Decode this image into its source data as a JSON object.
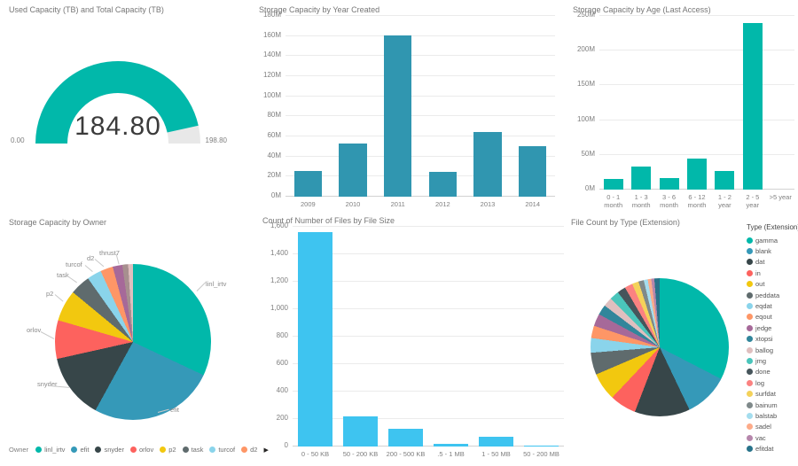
{
  "icons": {
    "legend_scroll_right": "▶"
  },
  "chart_data": [
    {
      "type": "gauge",
      "title": "Used Capacity (TB) and Total Capacity (TB)",
      "value": 184.8,
      "min": 0,
      "max": 198.8,
      "value_label": "184.80",
      "min_label": "0.00",
      "max_label": "198.80",
      "color": "#01B8AA",
      "track_color": "#E8E8E8"
    },
    {
      "type": "bar",
      "title": "Storage Capacity by Year Created",
      "categories": [
        "2009",
        "2010",
        "2011",
        "2012",
        "2013",
        "2014"
      ],
      "values": [
        26,
        53,
        161,
        25,
        64,
        50
      ],
      "value_unit": "M",
      "ymax": 180,
      "yticks": [
        "180M",
        "160M",
        "140M",
        "120M",
        "100M",
        "80M",
        "60M",
        "40M",
        "20M",
        "0M"
      ],
      "color": "#3096B0",
      "grid": true,
      "legend": "none"
    },
    {
      "type": "bar",
      "title": "Storage Capacity by Age (Last Access)",
      "categories": [
        [
          "0 - 1",
          "month"
        ],
        [
          "1 - 3",
          "month"
        ],
        [
          "3 - 6",
          "month"
        ],
        [
          "6 - 12",
          "month"
        ],
        [
          "1 - 2",
          "year"
        ],
        [
          "2 - 5",
          "year"
        ],
        [
          ">5 year"
        ]
      ],
      "values": [
        15,
        33,
        16,
        45,
        27,
        240,
        0
      ],
      "value_unit": "M",
      "ymax": 250,
      "yticks": [
        "250M",
        "200M",
        "150M",
        "100M",
        "50M",
        "0M"
      ],
      "color": "#01B8AA",
      "grid": true,
      "legend": "none"
    },
    {
      "type": "pie",
      "title": "Storage Capacity by Owner",
      "legend_title": "Owner",
      "legend_position": "bottom",
      "slices": [
        {
          "label": "linl_irtv",
          "pct": 32,
          "color": "#01B8AA"
        },
        {
          "label": "efit",
          "pct": 26,
          "color": "#3599B8"
        },
        {
          "label": "snyder",
          "pct": 13.5,
          "color": "#374649"
        },
        {
          "label": "orlov",
          "pct": 8,
          "color": "#FD625E"
        },
        {
          "label": "p2",
          "pct": 6.5,
          "color": "#F2C80F"
        },
        {
          "label": "task",
          "pct": 4.2,
          "color": "#5F6B6D"
        },
        {
          "label": "turcof",
          "pct": 3,
          "color": "#8AD4EB"
        },
        {
          "label": "d2",
          "pct": 2.6,
          "color": "#FE9666"
        },
        {
          "label": "thrust7",
          "pct": 2,
          "color": "#A66999"
        },
        {
          "label": "",
          "pct": 1.2,
          "color": "#A78F8F"
        },
        {
          "label": "",
          "pct": 1,
          "color": "#DFBFBF"
        }
      ]
    },
    {
      "type": "bar",
      "title": "Count of Number of Files by File Size",
      "categories": [
        "0 - 50 KB",
        "50 - 200 KB",
        "200 - 500 KB",
        ".5 - 1 MB",
        "1 - 50 MB",
        "50 - 200 MB"
      ],
      "values": [
        1560,
        220,
        130,
        20,
        70,
        8
      ],
      "ymax": 1600,
      "yticks": [
        "1,600",
        "1,400",
        "1,200",
        "1,000",
        "800",
        "600",
        "400",
        "200",
        "0"
      ],
      "color": "#3EC4F0",
      "grid": true,
      "legend": "none"
    },
    {
      "type": "pie",
      "title": "File Count by Type (Extension)",
      "legend_title": "Type (Extension)",
      "legend_position": "right",
      "slices": [
        {
          "label": "gamma",
          "pct": 31.5,
          "color": "#01B8AA"
        },
        {
          "label": "blank",
          "pct": 10,
          "color": "#3599B8"
        },
        {
          "label": "dat",
          "pct": 12.5,
          "color": "#374649"
        },
        {
          "label": "in",
          "pct": 6,
          "color": "#FD625E"
        },
        {
          "label": "out",
          "pct": 6.3,
          "color": "#F2C80F"
        },
        {
          "label": "peddata",
          "pct": 5,
          "color": "#5F6B6D"
        },
        {
          "label": "eqdat",
          "pct": 3.3,
          "color": "#8AD4EB"
        },
        {
          "label": "eqout",
          "pct": 2.8,
          "color": "#FE9666"
        },
        {
          "label": "jedge",
          "pct": 2.8,
          "color": "#A66999"
        },
        {
          "label": "xtopsi",
          "pct": 2.3,
          "color": "#31869B"
        },
        {
          "label": "ballog",
          "pct": 2.1,
          "color": "#DFBFBF"
        },
        {
          "label": "jmg",
          "pct": 2.1,
          "color": "#4AC5BB"
        },
        {
          "label": "done",
          "pct": 1.9,
          "color": "#46555B"
        },
        {
          "label": "log",
          "pct": 1.8,
          "color": "#FB8281"
        },
        {
          "label": "surfdat",
          "pct": 1.5,
          "color": "#F4D25A"
        },
        {
          "label": "bainum",
          "pct": 1.2,
          "color": "#7F898A"
        },
        {
          "label": "balstab",
          "pct": 0.9,
          "color": "#A4DDEE"
        },
        {
          "label": "sadel",
          "pct": 0.8,
          "color": "#FDAB89"
        },
        {
          "label": "vac",
          "pct": 0.7,
          "color": "#B687AC"
        },
        {
          "label": "efitdat",
          "pct": 1.2,
          "color": "#28738A"
        }
      ]
    }
  ]
}
